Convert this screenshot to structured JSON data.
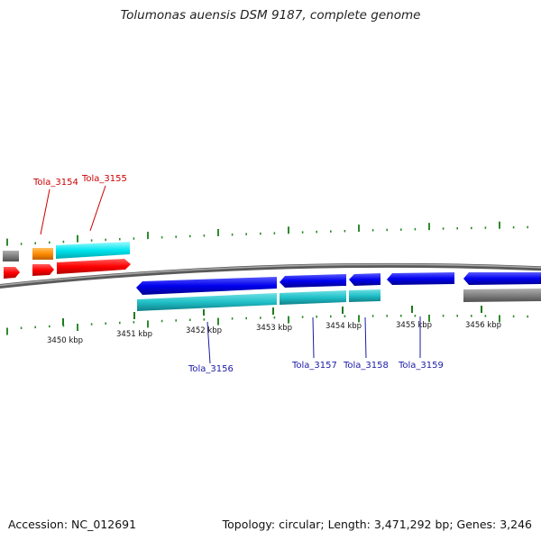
{
  "title": "Tolumonas auensis DSM 9187, complete genome",
  "footer": {
    "accession": "Accession: NC_012691",
    "summary": "Topology: circular; Length: 3,471,292 bp; Genes: 3,246"
  },
  "scale": {
    "ticks": [
      {
        "label": "3450 kbp"
      },
      {
        "label": "3451 kbp"
      },
      {
        "label": "3452 kbp"
      },
      {
        "label": "3453 kbp"
      },
      {
        "label": "3454 kbp"
      },
      {
        "label": "3455 kbp"
      },
      {
        "label": "3456 kbp"
      }
    ]
  },
  "genes": [
    {
      "id": "Tola_3154",
      "label": "Tola_3154",
      "color": "#ff8c00"
    },
    {
      "id": "Tola_3155",
      "label": "Tola_3155",
      "color": "#ff0000"
    },
    {
      "id": "Tola_3156",
      "label": "Tola_3156",
      "color": "#0000ee"
    },
    {
      "id": "Tola_3157",
      "label": "Tola_3157",
      "color": "#0000ee"
    },
    {
      "id": "Tola_3158",
      "label": "Tola_3158",
      "color": "#0000ee"
    },
    {
      "id": "Tola_3159",
      "label": "Tola_3159",
      "color": "#0000ee"
    }
  ],
  "colors": {
    "backbone": "#808080",
    "forward_cds": "#ff0000",
    "forward_gene": "#00e5ee",
    "reverse_cds": "#0000ee",
    "reverse_gene": "#20c0c8",
    "orange_feature": "#ff8c00",
    "grey_feature": "#808080",
    "gc_tick": "#2e8b2e"
  }
}
